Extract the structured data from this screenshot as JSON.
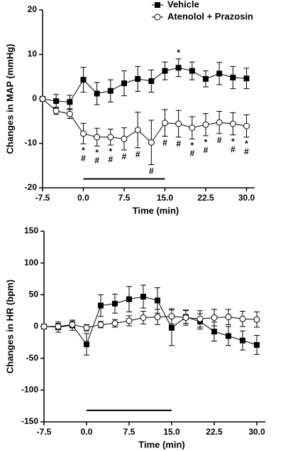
{
  "chart_data": [
    {
      "type": "line",
      "ylabel": "Changes in MAP (mmHg)",
      "xlabel": "Time (min)",
      "x": [
        -7.5,
        -5,
        -2.5,
        0,
        2.5,
        5,
        7.5,
        10,
        12.5,
        15,
        17.5,
        20,
        22.5,
        25,
        27.5,
        30
      ],
      "xlim": [
        -7.5,
        31.5
      ],
      "xticks": [
        -7.5,
        {
          "value": 0,
          "label": "0.0"
        },
        7.5,
        {
          "value": 15,
          "label": "15.0"
        },
        22.5,
        {
          "value": 30,
          "label": "30.0"
        }
      ],
      "ylim": [
        -20,
        20
      ],
      "yticks": [
        20,
        10,
        0,
        -10,
        -20
      ],
      "period": [
        0,
        15
      ],
      "period_y": -18,
      "legend": "top-right",
      "series": [
        {
          "name": "Vehicle",
          "marker": "square",
          "color": "#000000",
          "values": [
            0,
            -0.5,
            -0.7,
            4.3,
            1.2,
            1.8,
            3.5,
            4.5,
            4.0,
            6.3,
            7.0,
            6.3,
            4.5,
            5.7,
            4.8,
            4.6
          ],
          "errors": [
            0,
            1.5,
            1.5,
            2.8,
            2.5,
            2.5,
            2.8,
            2.8,
            2.5,
            2.0,
            2.0,
            2.0,
            1.8,
            2.5,
            2.5,
            2.3
          ],
          "star_labels_above": [
            null,
            null,
            null,
            null,
            null,
            null,
            null,
            null,
            null,
            null,
            "*",
            null,
            null,
            null,
            null,
            null
          ]
        },
        {
          "name": "Atenolol + Prazosin",
          "marker": "circle",
          "color": "#000000",
          "values": [
            0,
            -2.7,
            -3.4,
            -7.8,
            -8.6,
            -8.6,
            -9.0,
            -7.0,
            -9.8,
            -5.4,
            -5.6,
            -6.5,
            -5.8,
            -5.3,
            -5.6,
            -6.1
          ],
          "errors": [
            0,
            0.8,
            1.0,
            2.3,
            2.0,
            1.8,
            2.5,
            4.0,
            5.0,
            3.0,
            3.0,
            2.5,
            2.5,
            2.5,
            2.5,
            2.5
          ],
          "star_labels_below": [
            null,
            null,
            null,
            "*",
            "*",
            "*",
            null,
            null,
            null,
            null,
            null,
            "*",
            "*",
            null,
            "*",
            "*"
          ],
          "hash_labels_below": [
            null,
            null,
            null,
            "#",
            "#",
            "#",
            "#",
            "#",
            "#",
            "#",
            "#",
            "#",
            "#",
            "#",
            "#",
            "#"
          ]
        }
      ]
    },
    {
      "type": "line",
      "ylabel": "Changes in HR (bpm)",
      "xlabel": "Time (min)",
      "x": [
        -7.5,
        -5,
        -2.5,
        0,
        2.5,
        5,
        7.5,
        10,
        12.5,
        15,
        17.5,
        20,
        22.5,
        25,
        27.5,
        30
      ],
      "xlim": [
        -7.5,
        31.5
      ],
      "xticks": [
        -7.5,
        {
          "value": 0,
          "label": "0.0"
        },
        7.5,
        {
          "value": 15,
          "label": "15.0"
        },
        22.5,
        {
          "value": 30,
          "label": "30.0"
        }
      ],
      "ylim": [
        -150,
        150
      ],
      "yticks": [
        150,
        100,
        50,
        0,
        -50,
        -100,
        -150
      ],
      "period": [
        0,
        15
      ],
      "period_y": -132,
      "series": [
        {
          "marker": "square",
          "color": "#000000",
          "values": [
            0,
            -1,
            2,
            -28,
            33,
            36,
            43,
            47,
            41,
            -2,
            15,
            8,
            -8,
            -15,
            -22,
            -29
          ],
          "errors": [
            0,
            8,
            8,
            17,
            17,
            15,
            20,
            18,
            20,
            28,
            10,
            12,
            15,
            15,
            15,
            15
          ]
        },
        {
          "marker": "circle",
          "color": "#000000",
          "values": [
            0,
            0,
            3,
            -2,
            3,
            5,
            9,
            14,
            15,
            16,
            14,
            12,
            14,
            15,
            12,
            11
          ],
          "errors": [
            0,
            5,
            5,
            5,
            5,
            6,
            8,
            10,
            12,
            12,
            12,
            13,
            13,
            12,
            12,
            12
          ]
        }
      ]
    }
  ]
}
